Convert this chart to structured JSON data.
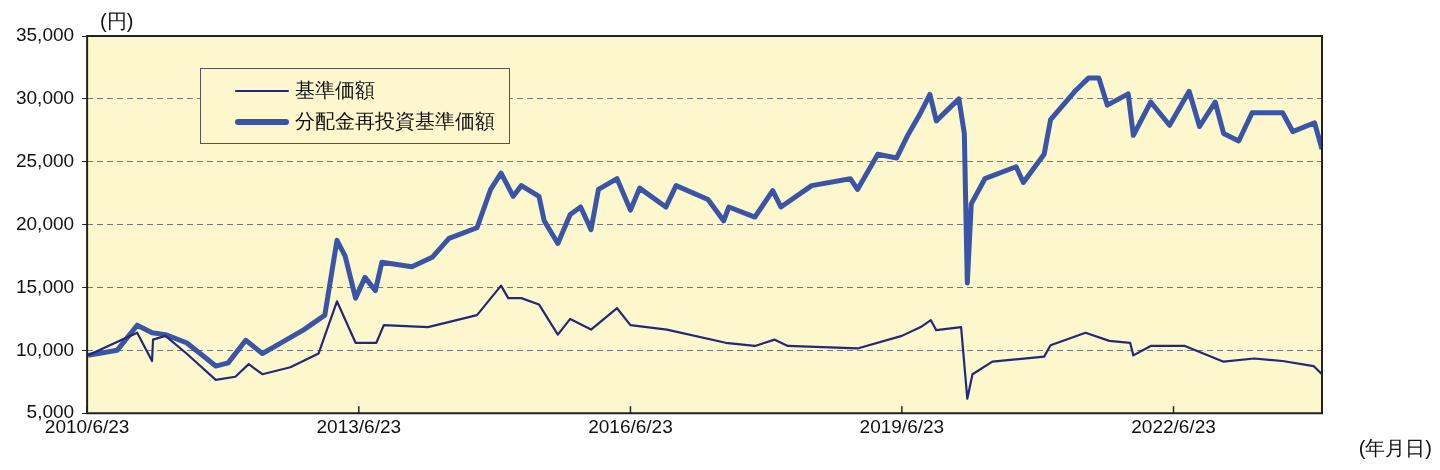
{
  "chart_data": {
    "type": "line",
    "ylabel": "(円)",
    "xlabel": "(年月日)",
    "legend": "top left",
    "grid": "y",
    "xlim": [
      "2010-06-23",
      "2024-02-12"
    ],
    "xticks": [
      {
        "value": "2010-06-23",
        "label": "2010/6/23"
      },
      {
        "value": "2013-06-23",
        "label": "2013/6/23"
      },
      {
        "value": "2016-06-23",
        "label": "2016/6/23"
      },
      {
        "value": "2019-06-23",
        "label": "2019/6/23"
      },
      {
        "value": "2022-06-23",
        "label": "2022/6/23"
      }
    ],
    "ylim": [
      5000,
      35000
    ],
    "yticks": [
      {
        "value": 5000,
        "label": "5,000"
      },
      {
        "value": 10000,
        "label": "10,000"
      },
      {
        "value": 15000,
        "label": "15,000"
      },
      {
        "value": 20000,
        "label": "20,000"
      },
      {
        "value": 25000,
        "label": "25,000"
      },
      {
        "value": 30000,
        "label": "30,000"
      },
      {
        "value": 35000,
        "label": "35,000"
      }
    ],
    "series": [
      {
        "name": "基準価額",
        "color": "#22297a",
        "x": [
          "2010-06-27",
          "2011-01-11",
          "2011-03-12",
          "2011-03-16",
          "2011-05-05",
          "2011-07-29",
          "2011-11-24",
          "2012-02-11",
          "2012-04-05",
          "2012-05-30",
          "2012-09-20",
          "2013-01-12",
          "2013-03-27",
          "2013-06-10",
          "2013-09-02",
          "2013-10-02",
          "2014-03-29",
          "2014-10-13",
          "2015-01-18",
          "2015-02-16",
          "2015-04-10",
          "2015-06-20",
          "2015-09-04",
          "2015-10-24",
          "2016-01-16",
          "2016-04-30",
          "2016-06-23",
          "2016-11-17",
          "2017-07-12",
          "2017-11-07",
          "2018-01-26",
          "2018-03-20",
          "2018-12-26",
          "2019-06-23",
          "2019-09-07",
          "2019-10-18",
          "2019-11-09",
          "2020-02-17",
          "2020-03-13",
          "2020-04-03",
          "2020-06-22",
          "2021-01-17",
          "2021-02-12",
          "2021-07-03",
          "2021-10-07",
          "2021-12-30",
          "2022-01-12",
          "2022-03-23",
          "2022-08-08",
          "2023-01-11",
          "2023-05-14",
          "2023-09-06",
          "2024-01-09",
          "2024-02-12"
        ],
        "values": [
          9600,
          11400,
          9150,
          10850,
          11150,
          9750,
          7650,
          7900,
          8900,
          8100,
          8650,
          9750,
          13900,
          10600,
          10600,
          12000,
          11850,
          12800,
          15150,
          14150,
          14150,
          13650,
          11250,
          12500,
          11650,
          13350,
          12000,
          11650,
          10600,
          10350,
          10850,
          10350,
          10150,
          11150,
          11850,
          12400,
          11600,
          11850,
          6150,
          8100,
          9100,
          9500,
          10400,
          11400,
          10750,
          10600,
          9600,
          10350,
          10350,
          9100,
          9350,
          9150,
          8750,
          8100
        ]
      },
      {
        "name": "分配金再投資基準価額",
        "color": "#3a55a8",
        "x": [
          "2010-06-27",
          "2010-10-22",
          "2011-01-11",
          "2011-03-12",
          "2011-05-05",
          "2011-07-29",
          "2011-09-22",
          "2011-11-24",
          "2012-01-13",
          "2012-03-24",
          "2012-05-30",
          "2012-07-27",
          "2012-11-14",
          "2013-02-06",
          "2013-03-27",
          "2013-04-29",
          "2013-06-10",
          "2013-07-18",
          "2013-08-29",
          "2013-09-24",
          "2014-01-23",
          "2014-04-15",
          "2014-06-22",
          "2014-10-13",
          "2014-12-07",
          "2015-01-18",
          "2015-03-08",
          "2015-04-10",
          "2015-06-20",
          "2015-07-11",
          "2015-09-04",
          "2015-10-24",
          "2015-12-05",
          "2016-01-16",
          "2016-02-15",
          "2016-04-30",
          "2016-06-23",
          "2016-07-30",
          "2016-11-13",
          "2016-12-24",
          "2017-05-02",
          "2017-07-04",
          "2017-07-25",
          "2017-11-07",
          "2018-01-18",
          "2018-02-20",
          "2018-06-24",
          "2018-11-27",
          "2018-12-26",
          "2019-03-18",
          "2019-06-02",
          "2019-07-14",
          "2019-09-07",
          "2019-10-14",
          "2019-11-09",
          "2020-02-08",
          "2020-03-01",
          "2020-03-13",
          "2020-03-29",
          "2020-05-23",
          "2020-09-26",
          "2020-10-25",
          "2021-01-17",
          "2021-02-12",
          "2021-05-21",
          "2021-07-15",
          "2021-08-26",
          "2021-09-29",
          "2021-12-22",
          "2022-01-12",
          "2022-03-23",
          "2022-06-07",
          "2022-08-25",
          "2022-10-06",
          "2022-12-08",
          "2023-01-11",
          "2023-03-13",
          "2023-05-06",
          "2023-09-06",
          "2023-10-17",
          "2024-01-13",
          "2024-02-12"
        ],
        "values": [
          9600,
          10000,
          12000,
          11400,
          11250,
          10600,
          9750,
          8750,
          9000,
          10800,
          9750,
          10400,
          11650,
          12800,
          18750,
          17500,
          14150,
          15800,
          14750,
          17000,
          16650,
          17400,
          18900,
          19750,
          22800,
          24100,
          22250,
          23100,
          22250,
          20300,
          18500,
          20800,
          21400,
          19600,
          22800,
          23650,
          21150,
          22900,
          21400,
          23100,
          22000,
          20300,
          21400,
          20600,
          22700,
          21400,
          23100,
          23650,
          22800,
          25600,
          25300,
          27000,
          28900,
          30350,
          28250,
          30000,
          27250,
          15350,
          21650,
          23650,
          24600,
          23350,
          25600,
          28350,
          30600,
          31650,
          31650,
          29500,
          30400,
          27100,
          29750,
          27900,
          30600,
          27800,
          29750,
          27250,
          26650,
          28900,
          28900,
          27400,
          28100,
          26000
        ]
      }
    ]
  }
}
